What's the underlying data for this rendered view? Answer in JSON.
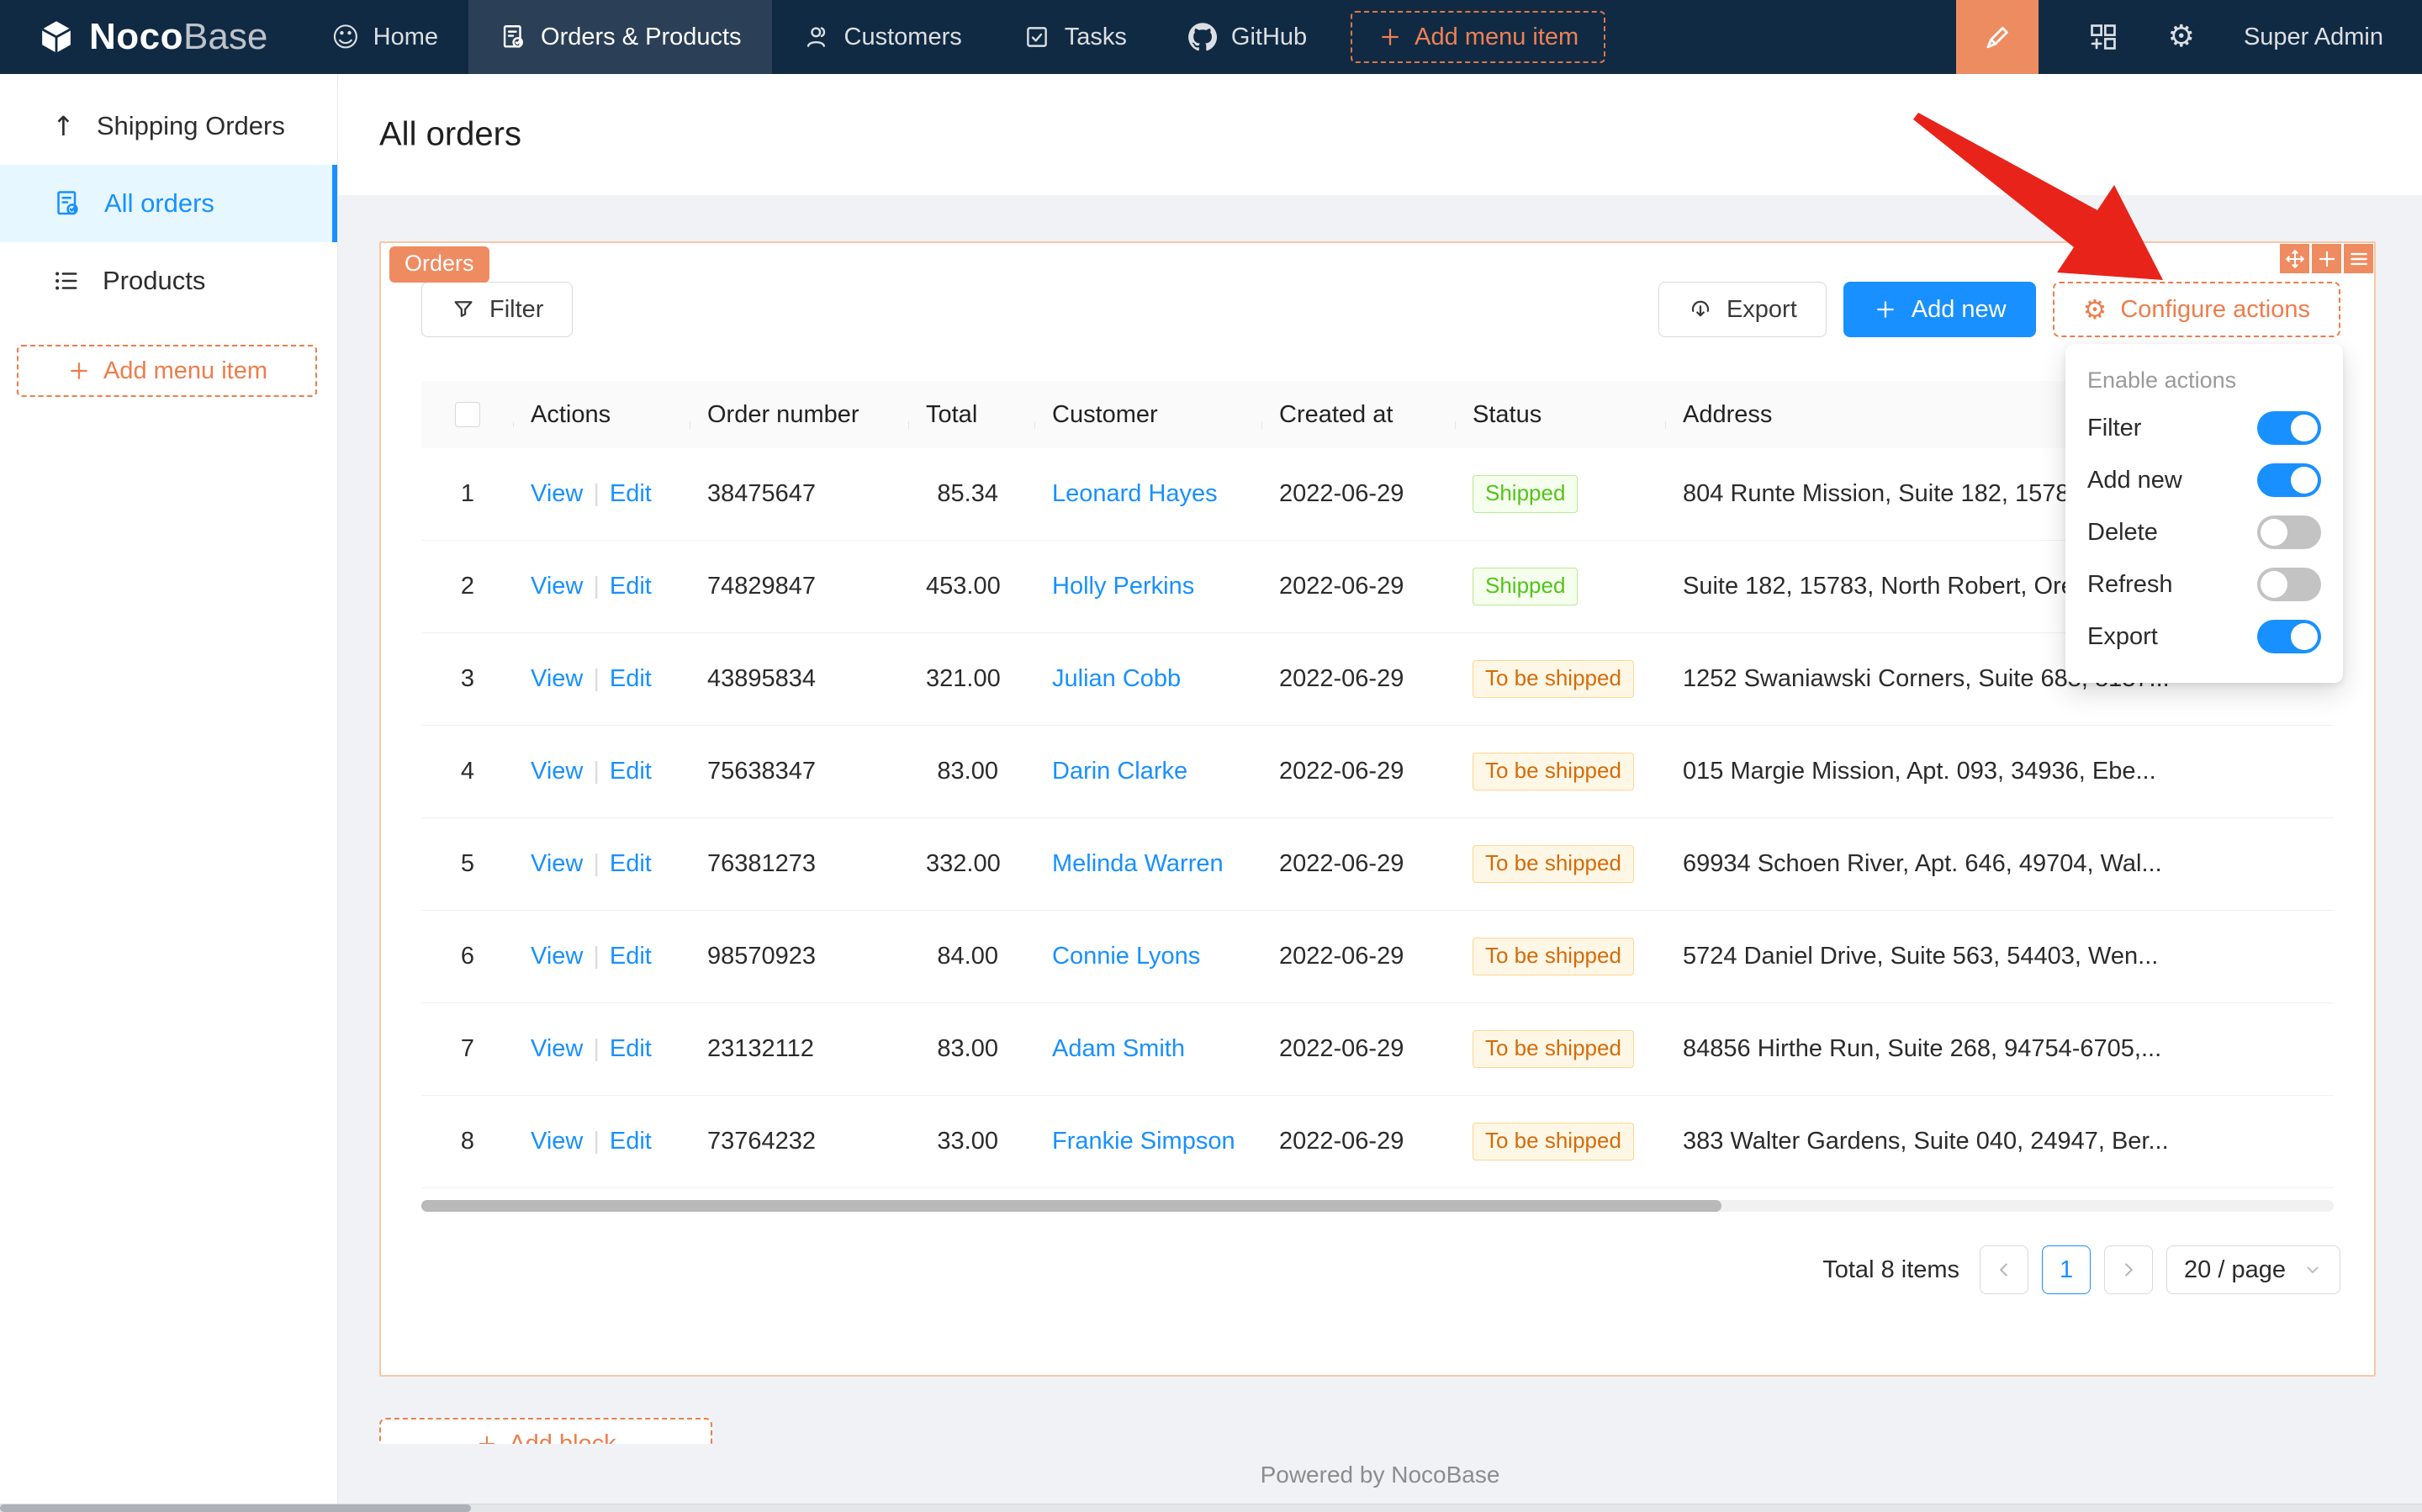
{
  "navbar": {
    "logo": {
      "name_bold": "Noco",
      "name_light": "Base"
    },
    "items": [
      {
        "label": "Home",
        "icon": "smiley-icon",
        "active": false
      },
      {
        "label": "Orders & Products",
        "icon": "file-done-icon",
        "active": true
      },
      {
        "label": "Customers",
        "icon": "person-icon",
        "active": false
      },
      {
        "label": "Tasks",
        "icon": "checkbox-icon",
        "active": false
      },
      {
        "label": "GitHub",
        "icon": "github-icon",
        "active": false
      }
    ],
    "add_menu_item_label": "Add menu item",
    "user": "Super Admin"
  },
  "sidebar": {
    "items": [
      {
        "label": "Shipping Orders",
        "icon": "arrow-up-icon",
        "active": false
      },
      {
        "label": "All orders",
        "icon": "file-done-icon",
        "active": true
      },
      {
        "label": "Products",
        "icon": "list-icon",
        "active": false
      }
    ],
    "add_menu_item_label": "Add menu item"
  },
  "page": {
    "title": "All orders"
  },
  "card": {
    "tag": "Orders",
    "filter_label": "Filter",
    "export_label": "Export",
    "add_new_label": "Add new",
    "configure_actions_label": "Configure actions"
  },
  "dropdown": {
    "title": "Enable actions",
    "items": [
      {
        "label": "Filter",
        "on": true
      },
      {
        "label": "Add new",
        "on": true
      },
      {
        "label": "Delete",
        "on": false
      },
      {
        "label": "Refresh",
        "on": false
      },
      {
        "label": "Export",
        "on": true
      }
    ]
  },
  "table": {
    "headers": [
      "Actions",
      "Order number",
      "Total",
      "Customer",
      "Created at",
      "Status",
      "Address"
    ],
    "action_labels": [
      "View",
      "Edit"
    ],
    "action_separator": "|",
    "rows": [
      {
        "index": "1",
        "order_number": "38475647",
        "total": "85.34",
        "customer": "Leonard Hayes",
        "created_at": "2022-06-29",
        "status": "Shipped",
        "status_type": "success",
        "address": "804 Runte Mission, Suite 182, 15783, N..."
      },
      {
        "index": "2",
        "order_number": "74829847",
        "total": "453.00",
        "customer": "Holly Perkins",
        "created_at": "2022-06-29",
        "status": "Shipped",
        "status_type": "success",
        "address": "Suite 182, 15783, North Robert, Oregon..."
      },
      {
        "index": "3",
        "order_number": "43895834",
        "total": "321.00",
        "customer": "Julian Cobb",
        "created_at": "2022-06-29",
        "status": "To be shipped",
        "status_type": "warning",
        "address": "1252 Swaniawski Corners, Suite 688, 8137..."
      },
      {
        "index": "4",
        "order_number": "75638347",
        "total": "83.00",
        "customer": "Darin Clarke",
        "created_at": "2022-06-29",
        "status": "To be shipped",
        "status_type": "warning",
        "address": "015 Margie Mission, Apt. 093, 34936, Ebe..."
      },
      {
        "index": "5",
        "order_number": "76381273",
        "total": "332.00",
        "customer": "Melinda Warren",
        "created_at": "2022-06-29",
        "status": "To be shipped",
        "status_type": "warning",
        "address": "69934 Schoen River, Apt. 646, 49704, Wal..."
      },
      {
        "index": "6",
        "order_number": "98570923",
        "total": "84.00",
        "customer": "Connie Lyons",
        "created_at": "2022-06-29",
        "status": "To be shipped",
        "status_type": "warning",
        "address": "5724 Daniel Drive, Suite 563, 54403, Wen..."
      },
      {
        "index": "7",
        "order_number": "23132112",
        "total": "83.00",
        "customer": "Adam Smith",
        "created_at": "2022-06-29",
        "status": "To be shipped",
        "status_type": "warning",
        "address": "84856 Hirthe Run, Suite 268, 94754-6705,..."
      },
      {
        "index": "8",
        "order_number": "73764232",
        "total": "33.00",
        "customer": "Frankie Simpson",
        "created_at": "2022-06-29",
        "status": "To be shipped",
        "status_type": "warning",
        "address": "383 Walter Gardens, Suite 040, 24947, Ber..."
      }
    ]
  },
  "pagination": {
    "total_label": "Total 8 items",
    "page": "1",
    "page_size": "20 / page"
  },
  "add_block": {
    "label": "Add block"
  },
  "footer": {
    "powered_by": "Powered by NocoBase"
  },
  "colors": {
    "navbar_bg": "#112a43",
    "accent_orange": "#ed7d4b",
    "tag_orange": "#ef8b61",
    "primary_blue": "#1890ff",
    "sidebar_active_bg": "#e6f7ff",
    "status_shipped_text": "#52c41a",
    "status_to_be_shipped_text": "#d46b08",
    "annotation_arrow_red": "#e8231a"
  }
}
